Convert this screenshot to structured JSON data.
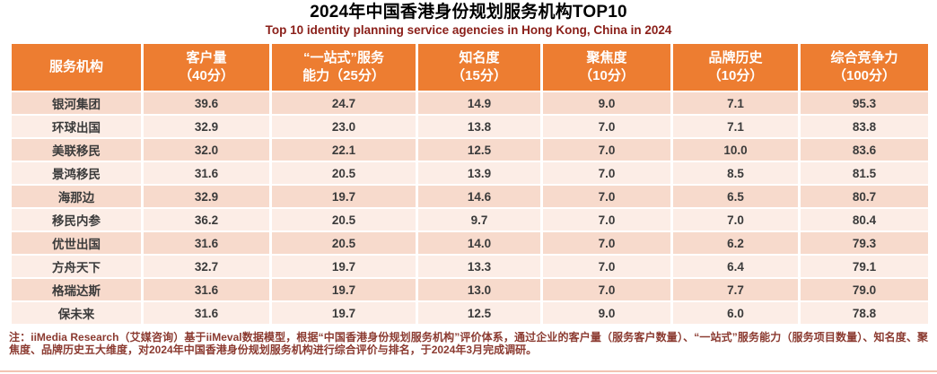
{
  "header": {
    "title": "2024年中国香港身份规划服务机构TOP10",
    "subtitle": "Top 10 identity planning service agencies in Hong Kong, China in 2024"
  },
  "table": {
    "headers": [
      {
        "line1": "服务机构",
        "line2": ""
      },
      {
        "line1": "客户量",
        "line2": "（40分）"
      },
      {
        "line1": "“一站式”服务",
        "line2": "能力（25分）"
      },
      {
        "line1": "知名度",
        "line2": "（15分）"
      },
      {
        "line1": "聚焦度",
        "line2": "（10分）"
      },
      {
        "line1": "品牌历史",
        "line2": "（10分）"
      },
      {
        "line1": "综合竞争力",
        "line2": "（100分）"
      }
    ],
    "rows": [
      {
        "agency": "银河集团",
        "scores": [
          "39.6",
          "24.7",
          "14.9",
          "9.0",
          "7.1",
          "95.3"
        ]
      },
      {
        "agency": "环球出国",
        "scores": [
          "32.9",
          "23.0",
          "13.8",
          "7.0",
          "7.1",
          "83.8"
        ]
      },
      {
        "agency": "美联移民",
        "scores": [
          "32.0",
          "22.1",
          "12.5",
          "7.0",
          "10.0",
          "83.6"
        ]
      },
      {
        "agency": "景鸿移民",
        "scores": [
          "31.6",
          "20.5",
          "13.9",
          "7.0",
          "8.5",
          "81.5"
        ]
      },
      {
        "agency": "海那边",
        "scores": [
          "32.9",
          "19.7",
          "14.6",
          "7.0",
          "6.5",
          "80.7"
        ]
      },
      {
        "agency": "移民内参",
        "scores": [
          "36.2",
          "20.5",
          "9.7",
          "7.0",
          "7.0",
          "80.4"
        ]
      },
      {
        "agency": "优世出国",
        "scores": [
          "31.6",
          "20.5",
          "14.0",
          "7.0",
          "6.2",
          "79.3"
        ]
      },
      {
        "agency": "方舟天下",
        "scores": [
          "32.7",
          "19.7",
          "13.3",
          "7.0",
          "6.4",
          "79.1"
        ]
      },
      {
        "agency": "格瑞达斯",
        "scores": [
          "31.6",
          "19.7",
          "13.0",
          "7.0",
          "7.7",
          "79.0"
        ]
      },
      {
        "agency": "保未来",
        "scores": [
          "31.6",
          "19.7",
          "12.5",
          "9.0",
          "6.0",
          "78.8"
        ]
      }
    ]
  },
  "footnote": {
    "text": "注：iiMedia Research（艾媒咨询）基于iiMeval数据模型，根据“中国香港身份规划服务机构”评价体系，通过企业的客户量（服务客户数量）、“一站式”服务能力（服务项目数量）、知名度、聚焦度、品牌历史五大维度，对2024年中国香港身份规划服务机构进行综合评价与排名，于2024年3月完成调研。"
  },
  "colors": {
    "header_bg": "#ED7D31",
    "row_odd_bg": "#F7DACC",
    "row_even_bg": "#FCEDE6",
    "title_color": "#000000",
    "subtitle_color": "#8B201A",
    "note_color": "#8B3A30",
    "cell_text": "#3B3B3B",
    "bottom_rule": "#F2C3B2"
  },
  "chart_data": {
    "type": "table",
    "title": "2024年中国香港身份规划服务机构TOP10",
    "subtitle": "Top 10 identity planning service agencies in Hong Kong, China in 2024",
    "columns": [
      "服务机构",
      "客户量（40分）",
      "“一站式”服务能力（25分）",
      "知名度（15分）",
      "聚焦度（10分）",
      "品牌历史（10分）",
      "综合竞争力（100分）"
    ],
    "rows": [
      [
        "银河集团",
        39.6,
        24.7,
        14.9,
        9.0,
        7.1,
        95.3
      ],
      [
        "环球出国",
        32.9,
        23.0,
        13.8,
        7.0,
        7.1,
        83.8
      ],
      [
        "美联移民",
        32.0,
        22.1,
        12.5,
        7.0,
        10.0,
        83.6
      ],
      [
        "景鸿移民",
        31.6,
        20.5,
        13.9,
        7.0,
        8.5,
        81.5
      ],
      [
        "海那边",
        32.9,
        19.7,
        14.6,
        7.0,
        6.5,
        80.7
      ],
      [
        "移民内参",
        36.2,
        20.5,
        9.7,
        7.0,
        7.0,
        80.4
      ],
      [
        "优世出国",
        31.6,
        20.5,
        14.0,
        7.0,
        6.2,
        79.3
      ],
      [
        "方舟天下",
        32.7,
        19.7,
        13.3,
        7.0,
        6.4,
        79.1
      ],
      [
        "格瑞达斯",
        31.6,
        19.7,
        13.0,
        7.0,
        7.7,
        79.0
      ],
      [
        "保未来",
        31.6,
        19.7,
        12.5,
        9.0,
        6.0,
        78.8
      ]
    ],
    "max_scores": {
      "客户量": 40,
      "“一站式”服务能力": 25,
      "知名度": 15,
      "聚焦度": 10,
      "品牌历史": 10,
      "综合竞争力": 100
    },
    "legend_position": "none",
    "grid": false
  }
}
